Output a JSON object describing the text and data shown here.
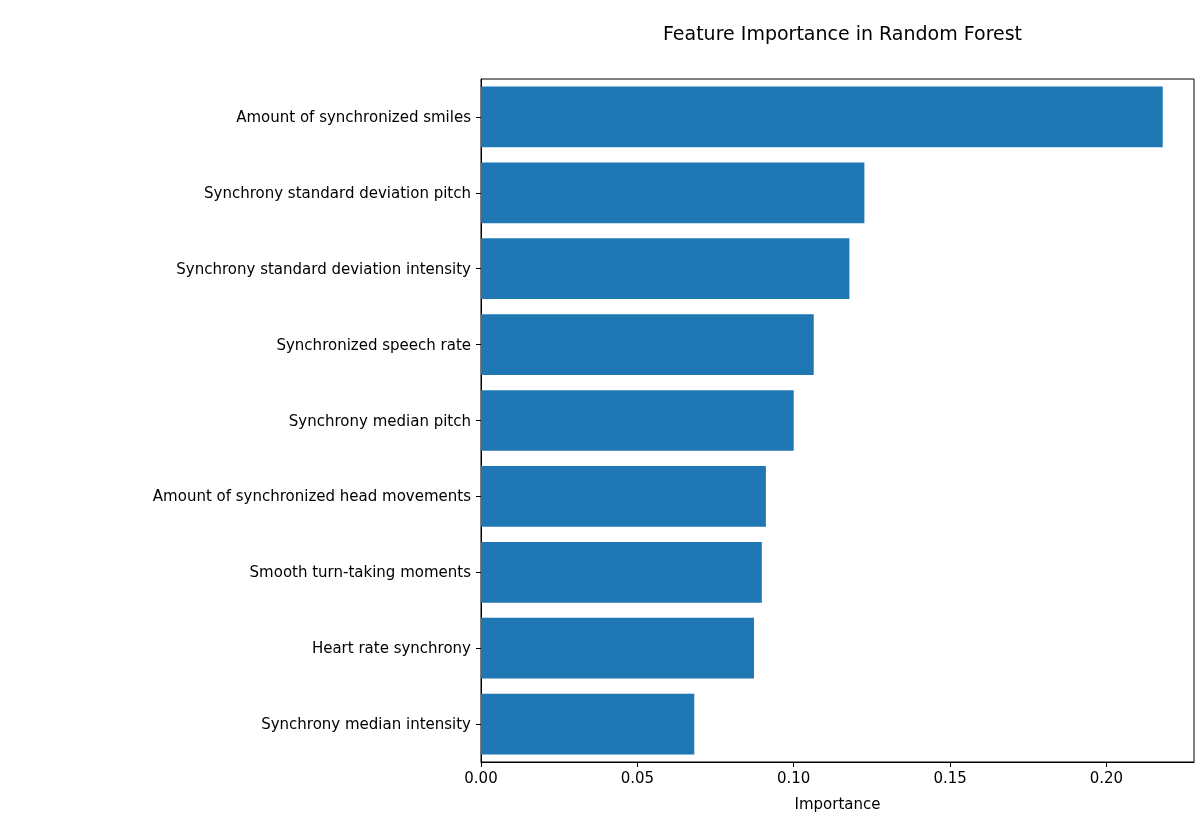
{
  "chart_data": {
    "type": "bar",
    "orientation": "horizontal",
    "title": "Feature Importance in Random Forest",
    "xlabel": "Importance",
    "categories": [
      "Amount of synchronized smiles",
      "Synchrony standard deviation pitch",
      "Synchrony standard deviation intensity",
      "Synchronized speech rate",
      "Synchrony median pitch",
      "Amount of synchronized head movements",
      "Smooth turn-taking moments",
      "Heart rate synchrony",
      "Synchrony median intensity"
    ],
    "values": [
      0.218,
      0.1226,
      0.1178,
      0.1064,
      0.1,
      0.0911,
      0.0898,
      0.0873,
      0.0682
    ],
    "color": "#1f77b4",
    "xlim": [
      0,
      0.228
    ],
    "xticks": [
      {
        "value": 0,
        "label": "0.00"
      },
      {
        "value": 0.05,
        "label": "0.05"
      },
      {
        "value": 0.1,
        "label": "0.10"
      },
      {
        "value": 0.15,
        "label": "0.15"
      },
      {
        "value": 0.2,
        "label": "0.20"
      }
    ],
    "grid": false
  }
}
